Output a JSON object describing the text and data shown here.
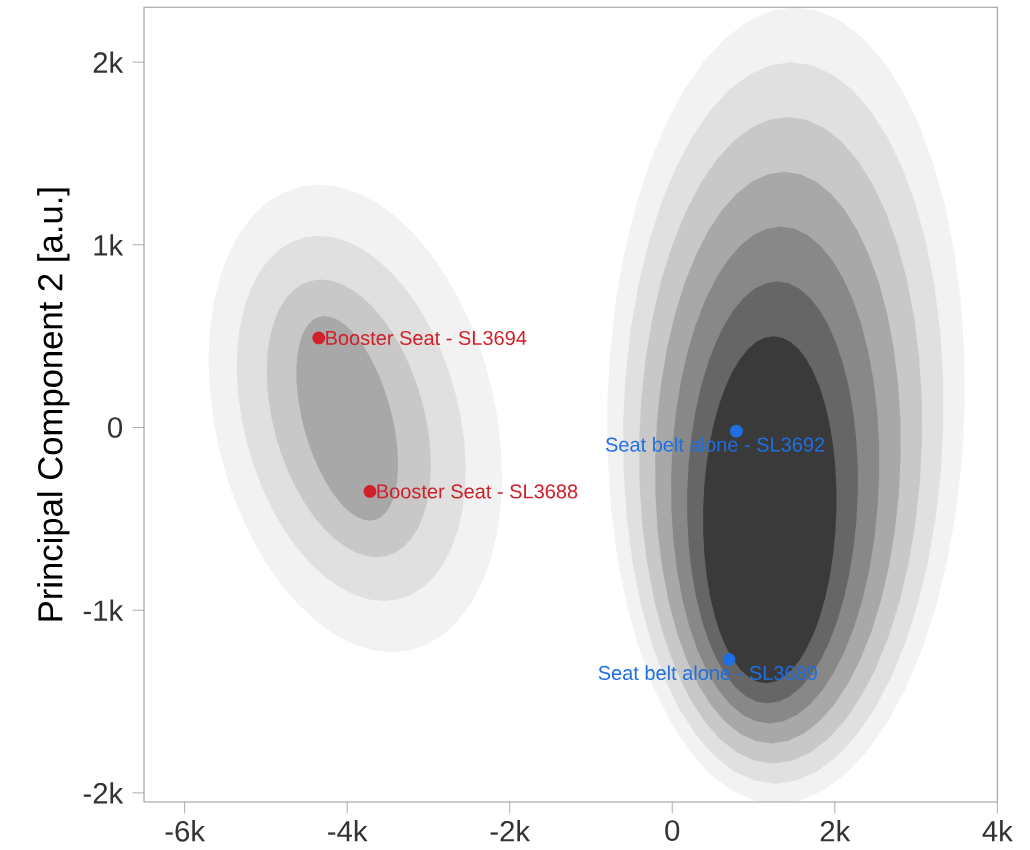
{
  "chart_data": {
    "type": "scatter",
    "ylabel": "Principal Component 2 [a.u.]",
    "xlim": [
      -6500,
      4000
    ],
    "ylim": [
      -2050,
      2300
    ],
    "xticks": [
      {
        "value": -6000,
        "label": "-6k"
      },
      {
        "value": -4000,
        "label": "-4k"
      },
      {
        "value": -2000,
        "label": "-2k"
      },
      0,
      {
        "value": 2000,
        "label": "2k"
      },
      {
        "value": 4000,
        "label": "4k"
      }
    ],
    "yticks": [
      {
        "value": -2000,
        "label": "-2k"
      },
      {
        "value": -1000,
        "label": "-1k"
      },
      0,
      {
        "value": 1000,
        "label": "1k"
      },
      {
        "value": 2000,
        "label": "2k"
      }
    ],
    "series": [
      {
        "color": "#d0202a",
        "x": [
          -4350,
          -3720
        ],
        "values": [
          490,
          -350
        ]
      },
      {
        "color": "#1f6fe0",
        "x": [
          790,
          700
        ],
        "values": [
          -20,
          -1270
        ]
      }
    ],
    "annotations": [
      {
        "text": "Booster Seat - SL3694",
        "x": -4350,
        "y": 490
      },
      {
        "text": "Booster Seat - SL3688",
        "x": -3720,
        "y": -350
      },
      {
        "text": "Seat belt alone - SL3692",
        "x": 790,
        "y": -20
      },
      {
        "text": "Seat belt alone - SL3689",
        "x": 700,
        "y": -1270
      }
    ],
    "grid": false
  }
}
